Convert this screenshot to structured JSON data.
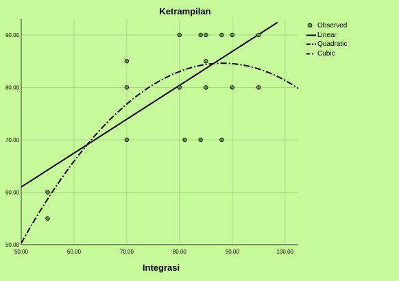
{
  "chart_data": {
    "type": "scatter",
    "title": "Ketrampilan",
    "xlabel": "Integrasi",
    "ylabel": "",
    "xlim": [
      50,
      102.5
    ],
    "ylim": [
      50,
      93
    ],
    "x_ticks": [
      "50.00",
      "60.00",
      "70.00",
      "80.00",
      "90.00",
      "100.00"
    ],
    "y_ticks": [
      "50.00",
      "60.00",
      "70.00",
      "80.00",
      "90.00"
    ],
    "grid": true,
    "legend_position": "right",
    "observed": {
      "name": "Observed",
      "points": [
        {
          "x": 55,
          "y": 60
        },
        {
          "x": 55,
          "y": 55
        },
        {
          "x": 70,
          "y": 85
        },
        {
          "x": 70,
          "y": 80
        },
        {
          "x": 70,
          "y": 70
        },
        {
          "x": 80,
          "y": 90
        },
        {
          "x": 80,
          "y": 80
        },
        {
          "x": 81,
          "y": 70
        },
        {
          "x": 84,
          "y": 90
        },
        {
          "x": 84,
          "y": 70
        },
        {
          "x": 85,
          "y": 90
        },
        {
          "x": 85,
          "y": 85
        },
        {
          "x": 85,
          "y": 80
        },
        {
          "x": 88,
          "y": 90
        },
        {
          "x": 88,
          "y": 70
        },
        {
          "x": 90,
          "y": 90
        },
        {
          "x": 90,
          "y": 80
        },
        {
          "x": 95,
          "y": 90
        },
        {
          "x": 95,
          "y": 80
        }
      ]
    },
    "fits": [
      {
        "name": "Linear",
        "style": "solid",
        "start": {
          "x": 50,
          "y": 61
        },
        "end": {
          "x": 98.6,
          "y": 92.4
        }
      },
      {
        "name": "Quadratic",
        "style": "dashdot",
        "peak": {
          "x": 88.2,
          "y": 84.6
        },
        "start": {
          "x": 50,
          "y": 50.3
        },
        "end": {
          "x": 102.5,
          "y": 80
        }
      },
      {
        "name": "Cubic",
        "style": "dashed"
      }
    ],
    "colors": {
      "background": "#c7fa9a",
      "point_fill": "#5e9a46",
      "line": "#000000",
      "grid": "#a6d982"
    }
  }
}
